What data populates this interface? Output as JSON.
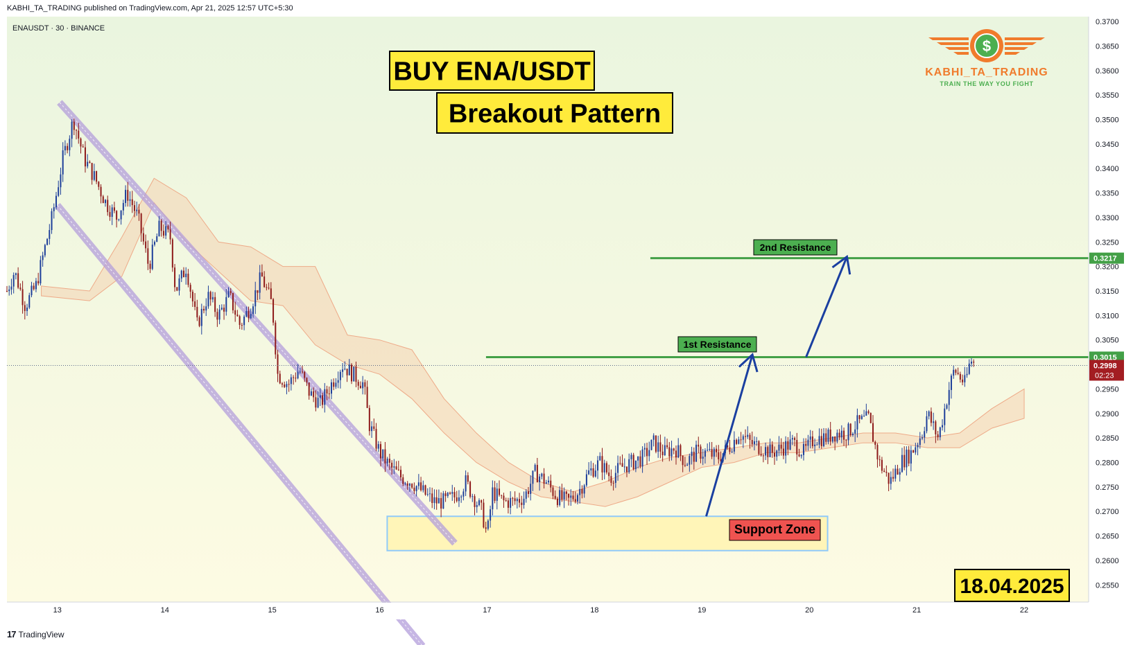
{
  "header": {
    "publisher_line": "KABHI_TA_TRADING published on TradingView.com, Apr 21, 2025 12:57 UTC+5:30"
  },
  "symbol_line": "ENAUSDT · 30 · BINANCE",
  "footer": {
    "brand": "TradingView"
  },
  "logo": {
    "name": "KABHI_TA_TRADING",
    "tagline": "TRAIN THE WAY YOU FIGHT",
    "symbol": "$",
    "color_orange": "#f07b2c",
    "color_green": "#4caf50"
  },
  "annotations": {
    "title": "BUY ENA/USDT",
    "subtitle": "Breakout Pattern",
    "date": "18.04.2025",
    "support_label": "Support Zone",
    "resistance1_label": "1st Resistance",
    "resistance2_label": "2nd Resistance"
  },
  "colors": {
    "up_candle": "#1e3f9a",
    "down_candle": "#8e1a1a",
    "resistance_line": "#43a047",
    "channel": "#b39ddb",
    "support_fill": "#fff3b0",
    "support_border": "#90caf9",
    "support_label_bg": "#ef5350",
    "arrow": "#1a3fa0",
    "label_yellow": "#ffeb3b",
    "price_tag_red": "#a31d22"
  },
  "chart_data": {
    "type": "candlestick",
    "symbol": "ENAUSDT",
    "timeframe": "30",
    "exchange": "BINANCE",
    "x_ticks": [
      "13",
      "14",
      "15",
      "16",
      "17",
      "18",
      "19",
      "20",
      "21",
      "22"
    ],
    "y_ticks": [
      "0.3700",
      "0.3650",
      "0.3600",
      "0.3550",
      "0.3500",
      "0.3450",
      "0.3400",
      "0.3350",
      "0.3300",
      "0.3250",
      "0.3200",
      "0.3150",
      "0.3100",
      "0.3050",
      "0.3000",
      "0.2950",
      "0.2900",
      "0.2850",
      "0.2800",
      "0.2750",
      "0.2700",
      "0.2650",
      "0.2600",
      "0.2550"
    ],
    "ylim": [
      0.2515,
      0.371
    ],
    "xlim": [
      12.53,
      22.6
    ],
    "close_path": [
      [
        12.53,
        0.315
      ],
      [
        12.6,
        0.319
      ],
      [
        12.7,
        0.312
      ],
      [
        12.8,
        0.316
      ],
      [
        12.95,
        0.33
      ],
      [
        13.05,
        0.342
      ],
      [
        13.15,
        0.35
      ],
      [
        13.25,
        0.342
      ],
      [
        13.35,
        0.338
      ],
      [
        13.45,
        0.333
      ],
      [
        13.55,
        0.33
      ],
      [
        13.65,
        0.335
      ],
      [
        13.75,
        0.33
      ],
      [
        13.85,
        0.32
      ],
      [
        13.95,
        0.328
      ],
      [
        14.05,
        0.326
      ],
      [
        14.1,
        0.315
      ],
      [
        14.2,
        0.32
      ],
      [
        14.3,
        0.308
      ],
      [
        14.4,
        0.314
      ],
      [
        14.5,
        0.31
      ],
      [
        14.6,
        0.314
      ],
      [
        14.7,
        0.308
      ],
      [
        14.8,
        0.312
      ],
      [
        14.9,
        0.318
      ],
      [
        15.0,
        0.312
      ],
      [
        15.05,
        0.298
      ],
      [
        15.15,
        0.296
      ],
      [
        15.25,
        0.299
      ],
      [
        15.35,
        0.294
      ],
      [
        15.45,
        0.292
      ],
      [
        15.55,
        0.296
      ],
      [
        15.65,
        0.3
      ],
      [
        15.75,
        0.298
      ],
      [
        15.85,
        0.296
      ],
      [
        15.9,
        0.288
      ],
      [
        16.0,
        0.282
      ],
      [
        16.1,
        0.279
      ],
      [
        16.2,
        0.277
      ],
      [
        16.3,
        0.276
      ],
      [
        16.4,
        0.274
      ],
      [
        16.5,
        0.272
      ],
      [
        16.6,
        0.272
      ],
      [
        16.7,
        0.273
      ],
      [
        16.8,
        0.276
      ],
      [
        16.95,
        0.27
      ],
      [
        17.0,
        0.265
      ],
      [
        17.05,
        0.274
      ],
      [
        17.15,
        0.272
      ],
      [
        17.25,
        0.272
      ],
      [
        17.35,
        0.273
      ],
      [
        17.45,
        0.278
      ],
      [
        17.55,
        0.276
      ],
      [
        17.65,
        0.273
      ],
      [
        17.75,
        0.272
      ],
      [
        17.85,
        0.274
      ],
      [
        17.95,
        0.278
      ],
      [
        18.05,
        0.28
      ],
      [
        18.15,
        0.277
      ],
      [
        18.25,
        0.279
      ],
      [
        18.35,
        0.28
      ],
      [
        18.45,
        0.281
      ],
      [
        18.55,
        0.284
      ],
      [
        18.65,
        0.282
      ],
      [
        18.75,
        0.283
      ],
      [
        18.85,
        0.28
      ],
      [
        18.95,
        0.282
      ],
      [
        19.05,
        0.282
      ],
      [
        19.15,
        0.281
      ],
      [
        19.25,
        0.283
      ],
      [
        19.35,
        0.286
      ],
      [
        19.45,
        0.284
      ],
      [
        19.55,
        0.283
      ],
      [
        19.65,
        0.282
      ],
      [
        19.75,
        0.283
      ],
      [
        19.85,
        0.284
      ],
      [
        19.95,
        0.282
      ],
      [
        20.05,
        0.285
      ],
      [
        20.15,
        0.285
      ],
      [
        20.25,
        0.286
      ],
      [
        20.35,
        0.286
      ],
      [
        20.45,
        0.288
      ],
      [
        20.55,
        0.289
      ],
      [
        20.65,
        0.28
      ],
      [
        20.75,
        0.276
      ],
      [
        20.85,
        0.28
      ],
      [
        20.95,
        0.282
      ],
      [
        21.05,
        0.286
      ],
      [
        21.1,
        0.29
      ],
      [
        21.2,
        0.285
      ],
      [
        21.3,
        0.295
      ],
      [
        21.35,
        0.299
      ],
      [
        21.45,
        0.296
      ],
      [
        21.5,
        0.301
      ],
      [
        21.55,
        0.2998
      ]
    ],
    "cloud_path": [
      [
        12.85,
        0.314,
        0.316
      ],
      [
        13.3,
        0.313,
        0.315
      ],
      [
        13.6,
        0.318,
        0.326
      ],
      [
        13.9,
        0.333,
        0.338
      ],
      [
        14.2,
        0.325,
        0.334
      ],
      [
        14.5,
        0.319,
        0.325
      ],
      [
        14.8,
        0.313,
        0.324
      ],
      [
        15.1,
        0.312,
        0.32
      ],
      [
        15.4,
        0.304,
        0.32
      ],
      [
        15.7,
        0.3,
        0.306
      ],
      [
        16.0,
        0.298,
        0.305
      ],
      [
        16.3,
        0.293,
        0.303
      ],
      [
        16.6,
        0.286,
        0.293
      ],
      [
        16.9,
        0.28,
        0.286
      ],
      [
        17.2,
        0.276,
        0.28
      ],
      [
        17.5,
        0.273,
        0.276
      ],
      [
        17.8,
        0.272,
        0.274
      ],
      [
        18.1,
        0.271,
        0.276
      ],
      [
        18.4,
        0.273,
        0.279
      ],
      [
        18.7,
        0.276,
        0.281
      ],
      [
        19.0,
        0.279,
        0.282
      ],
      [
        19.3,
        0.28,
        0.283
      ],
      [
        19.6,
        0.282,
        0.284
      ],
      [
        19.9,
        0.282,
        0.284
      ],
      [
        20.2,
        0.283,
        0.285
      ],
      [
        20.5,
        0.284,
        0.286
      ],
      [
        20.8,
        0.284,
        0.286
      ],
      [
        21.1,
        0.283,
        0.285
      ],
      [
        21.4,
        0.283,
        0.286
      ],
      [
        21.7,
        0.287,
        0.291
      ],
      [
        22.0,
        0.289,
        0.295
      ]
    ],
    "channel_lines": [
      {
        "from": [
          13.02,
          0.3535
        ],
        "to": [
          16.7,
          0.2635
        ]
      },
      {
        "from": [
          13.0,
          0.3325
        ],
        "to": [
          16.4,
          0.2425
        ]
      }
    ],
    "support_zone": {
      "x": [
        16.07,
        20.17
      ],
      "y": [
        0.262,
        0.269
      ]
    },
    "resistances": [
      {
        "label": "1st Resistance",
        "price": 0.3015,
        "x_start": 16.99
      },
      {
        "label": "2nd Resistance",
        "price": 0.3217,
        "x_start": 18.52
      }
    ],
    "arrows": [
      {
        "from": [
          19.04,
          0.269
        ],
        "to": [
          19.47,
          0.302
        ]
      },
      {
        "from": [
          19.97,
          0.3015
        ],
        "to": [
          20.35,
          0.322
        ]
      }
    ],
    "last_price": {
      "value": "0.2998",
      "countdown": "02:23",
      "level_label": "0.3015",
      "level2_label": "0.3217"
    }
  }
}
